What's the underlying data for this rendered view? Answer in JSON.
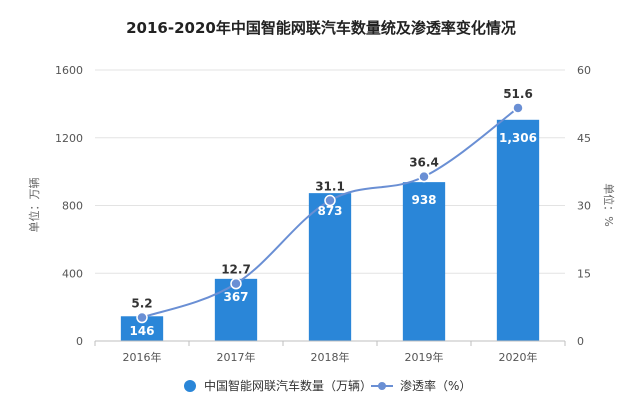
{
  "chart_data": {
    "type": "bar+line",
    "title": "2016-2020年中国智能网联汽车数量统及渗透率变化情况",
    "categories": [
      "2016年",
      "2017年",
      "2018年",
      "2019年",
      "2020年"
    ],
    "series": [
      {
        "name": "中国智能网联汽车数量（万辆）",
        "type": "bar",
        "axis": "left",
        "values": [
          146,
          367,
          873,
          938,
          1306
        ],
        "labels": [
          "146",
          "367",
          "873",
          "938",
          "1,306"
        ],
        "color": "#2a86d8"
      },
      {
        "name": "渗透率（%）",
        "type": "line",
        "axis": "right",
        "values": [
          5.2,
          12.7,
          31.1,
          36.4,
          51.6
        ],
        "labels": [
          "5.2",
          "12.7",
          "31.1",
          "36.4",
          "51.6"
        ],
        "color": "#6a8fd4"
      }
    ],
    "y_left": {
      "label": "单位：万辆",
      "min": 0,
      "max": 1600,
      "ticks": [
        "0",
        "400",
        "800",
        "1200",
        "1600"
      ]
    },
    "y_right": {
      "label": "单位：%",
      "min": 0,
      "max": 60,
      "ticks": [
        "0",
        "15",
        "30",
        "45",
        "60"
      ]
    },
    "grid": true,
    "legend_position": "bottom"
  }
}
